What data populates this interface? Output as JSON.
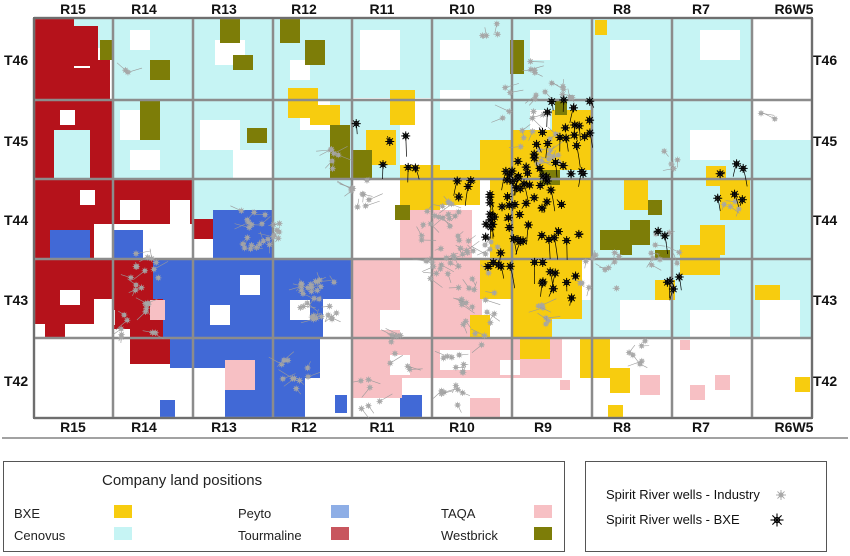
{
  "map": {
    "range_labels": [
      "R15",
      "R14",
      "R13",
      "R12",
      "R11",
      "R10",
      "R9",
      "R8",
      "R7",
      "R6W5"
    ],
    "township_labels": [
      "T46",
      "T45",
      "T44",
      "T43",
      "T42"
    ]
  },
  "legend": {
    "title": "Company land positions",
    "items": [
      {
        "name": "BXE",
        "color": "#f7cc0f"
      },
      {
        "name": "Cenovus",
        "color": "#c6f4f4"
      },
      {
        "name": "Peyto",
        "color": "#8eaee6"
      },
      {
        "name": "Tourmaline",
        "color": "#c8565e"
      },
      {
        "name": "TAQA",
        "color": "#f7c0c4"
      },
      {
        "name": "Westbrick",
        "color": "#7d7d08"
      }
    ]
  },
  "wells_legend": {
    "industry_label": "Spirit River wells - Industry",
    "bxe_label": "Spirit River wells - BXE"
  },
  "colors": {
    "bxe": "#f7cc0f",
    "cenovus": "#c6f4f4",
    "peyto_map": "#4169d6",
    "tourmaline_map": "#b5121b",
    "taqa": "#f7c0c4",
    "westbrick": "#7d7d08",
    "grid": "#8c8c8c",
    "industry_well": "#a6a6a6",
    "bxe_well": "#000000"
  }
}
